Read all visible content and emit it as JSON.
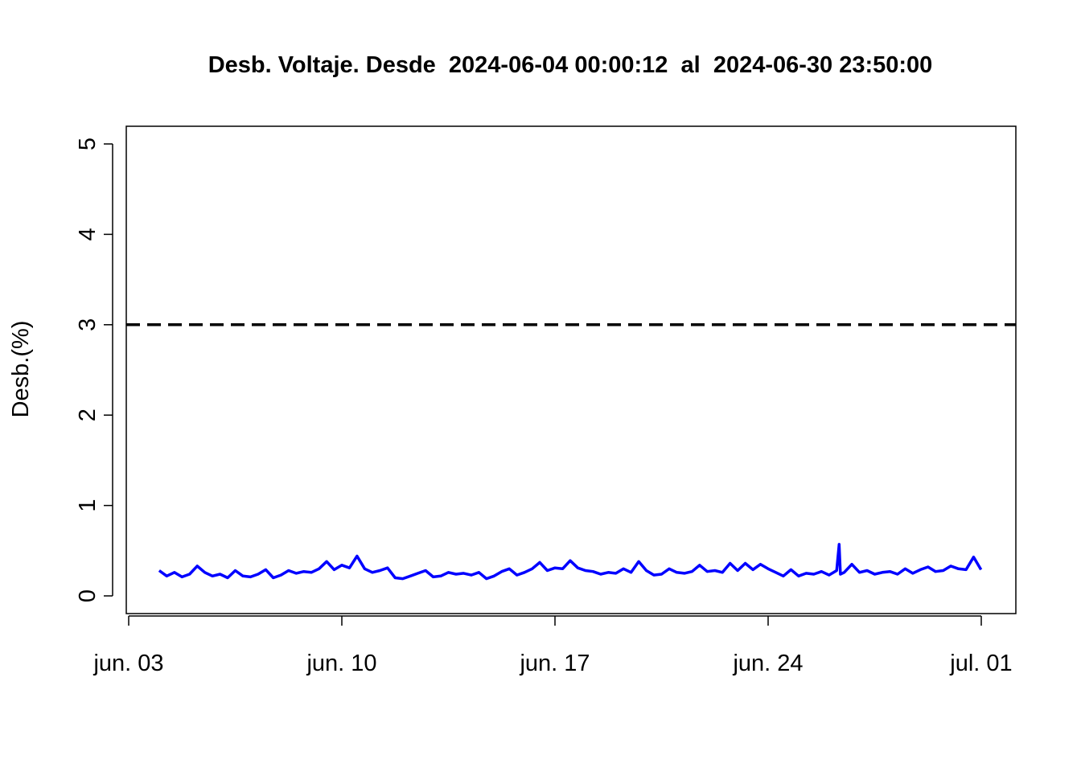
{
  "chart_data": {
    "type": "line",
    "title": "Desb. Voltaje. Desde  2024-06-04 00:00:12  al  2024-06-30 23:50:00",
    "xlabel": "",
    "ylabel": "Desb.(%)",
    "ylim": [
      0,
      5
    ],
    "xlim": [
      "2024-06-03",
      "2024-07-01"
    ],
    "x_ticks": [
      {
        "value": "2024-06-03",
        "label": "jun. 03"
      },
      {
        "value": "2024-06-10",
        "label": "jun. 10"
      },
      {
        "value": "2024-06-17",
        "label": "jun. 17"
      },
      {
        "value": "2024-06-24",
        "label": "jun. 24"
      },
      {
        "value": "2024-07-01",
        "label": "jul. 01"
      }
    ],
    "y_ticks": [
      0,
      1,
      2,
      3,
      4,
      5
    ],
    "reference_line": {
      "value": 3,
      "style": "dashed",
      "color": "#000000"
    },
    "grid": false,
    "series": [
      {
        "color": "#0000ff",
        "x": [
          "2024-06-04 00:00",
          "2024-06-04 06:00",
          "2024-06-04 12:00",
          "2024-06-04 18:00",
          "2024-06-05 00:00",
          "2024-06-05 06:00",
          "2024-06-05 12:00",
          "2024-06-05 18:00",
          "2024-06-06 00:00",
          "2024-06-06 06:00",
          "2024-06-06 12:00",
          "2024-06-06 18:00",
          "2024-06-07 00:00",
          "2024-06-07 06:00",
          "2024-06-07 12:00",
          "2024-06-07 18:00",
          "2024-06-08 00:00",
          "2024-06-08 06:00",
          "2024-06-08 12:00",
          "2024-06-08 18:00",
          "2024-06-09 00:00",
          "2024-06-09 06:00",
          "2024-06-09 12:00",
          "2024-06-09 18:00",
          "2024-06-10 00:00",
          "2024-06-10 06:00",
          "2024-06-10 12:00",
          "2024-06-10 18:00",
          "2024-06-11 00:00",
          "2024-06-11 06:00",
          "2024-06-11 12:00",
          "2024-06-11 18:00",
          "2024-06-12 00:00",
          "2024-06-12 06:00",
          "2024-06-12 12:00",
          "2024-06-12 18:00",
          "2024-06-13 00:00",
          "2024-06-13 06:00",
          "2024-06-13 12:00",
          "2024-06-13 18:00",
          "2024-06-14 00:00",
          "2024-06-14 06:00",
          "2024-06-14 12:00",
          "2024-06-14 18:00",
          "2024-06-15 00:00",
          "2024-06-15 06:00",
          "2024-06-15 12:00",
          "2024-06-15 18:00",
          "2024-06-16 00:00",
          "2024-06-16 06:00",
          "2024-06-16 12:00",
          "2024-06-16 18:00",
          "2024-06-17 00:00",
          "2024-06-17 06:00",
          "2024-06-17 12:00",
          "2024-06-17 18:00",
          "2024-06-18 00:00",
          "2024-06-18 06:00",
          "2024-06-18 12:00",
          "2024-06-18 18:00",
          "2024-06-19 00:00",
          "2024-06-19 06:00",
          "2024-06-19 12:00",
          "2024-06-19 18:00",
          "2024-06-20 00:00",
          "2024-06-20 06:00",
          "2024-06-20 12:00",
          "2024-06-20 18:00",
          "2024-06-21 00:00",
          "2024-06-21 06:00",
          "2024-06-21 12:00",
          "2024-06-21 18:00",
          "2024-06-22 00:00",
          "2024-06-22 06:00",
          "2024-06-22 12:00",
          "2024-06-22 18:00",
          "2024-06-23 00:00",
          "2024-06-23 06:00",
          "2024-06-23 12:00",
          "2024-06-23 18:00",
          "2024-06-24 00:00",
          "2024-06-24 06:00",
          "2024-06-24 12:00",
          "2024-06-24 18:00",
          "2024-06-25 00:00",
          "2024-06-25 06:00",
          "2024-06-25 12:00",
          "2024-06-25 18:00",
          "2024-06-26 00:00",
          "2024-06-26 06:00",
          "2024-06-26 08:00",
          "2024-06-26 09:00",
          "2024-06-26 12:00",
          "2024-06-26 18:00",
          "2024-06-27 00:00",
          "2024-06-27 06:00",
          "2024-06-27 12:00",
          "2024-06-27 18:00",
          "2024-06-28 00:00",
          "2024-06-28 06:00",
          "2024-06-28 12:00",
          "2024-06-28 18:00",
          "2024-06-29 00:00",
          "2024-06-29 06:00",
          "2024-06-29 12:00",
          "2024-06-29 18:00",
          "2024-06-30 00:00",
          "2024-06-30 06:00",
          "2024-06-30 12:00",
          "2024-06-30 18:00",
          "2024-06-30 23:50"
        ],
        "y": [
          0.28,
          0.22,
          0.26,
          0.21,
          0.24,
          0.33,
          0.26,
          0.22,
          0.24,
          0.2,
          0.28,
          0.22,
          0.21,
          0.24,
          0.29,
          0.2,
          0.23,
          0.28,
          0.25,
          0.27,
          0.26,
          0.3,
          0.38,
          0.29,
          0.34,
          0.31,
          0.44,
          0.3,
          0.26,
          0.28,
          0.31,
          0.2,
          0.19,
          0.22,
          0.25,
          0.28,
          0.21,
          0.22,
          0.26,
          0.24,
          0.25,
          0.23,
          0.26,
          0.19,
          0.22,
          0.27,
          0.3,
          0.23,
          0.26,
          0.3,
          0.37,
          0.28,
          0.31,
          0.3,
          0.39,
          0.31,
          0.28,
          0.27,
          0.24,
          0.26,
          0.25,
          0.3,
          0.26,
          0.38,
          0.28,
          0.23,
          0.24,
          0.3,
          0.26,
          0.25,
          0.27,
          0.34,
          0.27,
          0.28,
          0.26,
          0.36,
          0.28,
          0.36,
          0.29,
          0.35,
          0.3,
          0.26,
          0.22,
          0.29,
          0.22,
          0.25,
          0.24,
          0.27,
          0.23,
          0.28,
          0.57,
          0.24,
          0.26,
          0.35,
          0.26,
          0.28,
          0.24,
          0.26,
          0.27,
          0.24,
          0.3,
          0.25,
          0.29,
          0.32,
          0.27,
          0.28,
          0.33,
          0.3,
          0.29,
          0.43,
          0.29
        ]
      }
    ]
  }
}
